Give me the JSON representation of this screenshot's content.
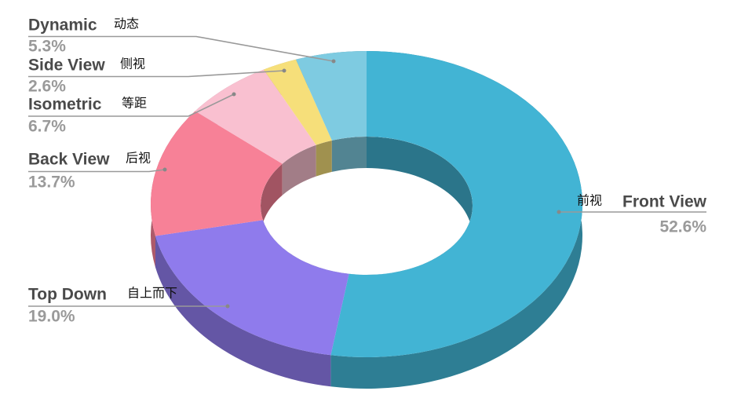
{
  "chart_data": {
    "type": "donut3d",
    "categories": [
      "Front View",
      "Top Down",
      "Back View",
      "Isometric",
      "Side View",
      "Dynamic"
    ],
    "category_labels_zh": [
      "前视",
      "自上而下",
      "后视",
      "等距",
      "侧视",
      "动态"
    ],
    "values": [
      52.6,
      19.0,
      13.7,
      6.7,
      2.6,
      5.3
    ],
    "value_labels": [
      "52.6%",
      "19.0%",
      "13.7%",
      "6.7%",
      "2.6%",
      "5.3%"
    ],
    "colors": [
      "#42b4d4",
      "#8f7bec",
      "#f78197",
      "#f9c0d0",
      "#f6df7a",
      "#7ecbe1"
    ]
  }
}
